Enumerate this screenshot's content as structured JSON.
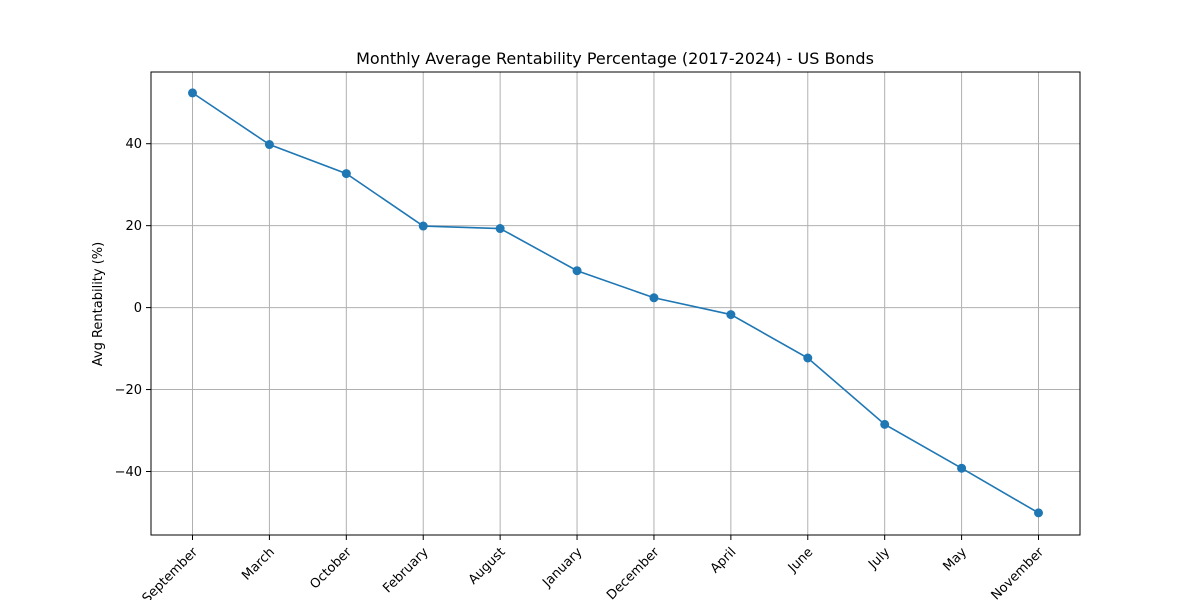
{
  "chart_data": {
    "type": "line",
    "title": "Monthly Average Rentability Percentage (2017-2024) - US Bonds",
    "xlabel": "",
    "ylabel": "Avg Rentability (%)",
    "categories": [
      "September",
      "March",
      "October",
      "February",
      "August",
      "January",
      "December",
      "April",
      "June",
      "July",
      "May",
      "November"
    ],
    "values": [
      52.4,
      39.8,
      32.7,
      19.9,
      19.3,
      9.0,
      2.4,
      -1.7,
      -12.3,
      -28.5,
      -39.2,
      -50.1
    ],
    "ylim": [
      -55.5,
      57.5
    ],
    "yticks": [
      -40,
      -20,
      0,
      20,
      40
    ],
    "ytick_labels": [
      "−40",
      "−20",
      "0",
      "20",
      "40"
    ],
    "grid": true,
    "line_color": "#1f77b4",
    "marker": "circle"
  }
}
